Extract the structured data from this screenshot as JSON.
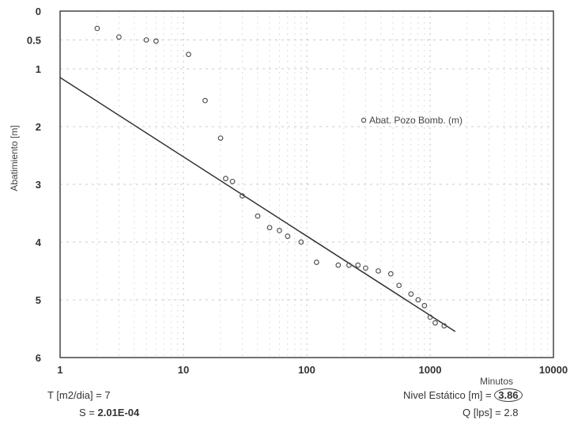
{
  "chart_data": {
    "type": "scatter",
    "xscale": "log",
    "xlim": [
      1,
      10000
    ],
    "ylim": [
      6,
      0
    ],
    "y_inverted": true,
    "xlabel": "Minutos",
    "ylabel": "Abatimiento [m]",
    "x_ticks": [
      "1",
      "10",
      "100",
      "1000",
      "10000"
    ],
    "y_ticks": [
      "0",
      "0.5",
      "1",
      "2",
      "3",
      "4",
      "5",
      "6"
    ],
    "y_tick_values": [
      0,
      0.5,
      1,
      2,
      3,
      4,
      5,
      6
    ],
    "legend": {
      "label": "Abat. Pozo Bomb. (m)",
      "position": "middle-right"
    },
    "grid": true,
    "series": [
      {
        "name": "Abat. Pozo Bomb. (m)",
        "x": [
          2,
          3,
          5,
          6,
          11,
          15,
          20,
          22,
          25,
          30,
          40,
          50,
          60,
          70,
          90,
          120,
          180,
          220,
          260,
          300,
          380,
          480,
          560,
          700,
          800,
          900,
          1000,
          1100,
          1300
        ],
        "y": [
          0.3,
          0.45,
          0.5,
          0.52,
          0.75,
          1.55,
          2.2,
          2.9,
          2.95,
          3.2,
          3.55,
          3.75,
          3.8,
          3.9,
          4.0,
          4.35,
          4.4,
          4.4,
          4.4,
          4.45,
          4.5,
          4.55,
          4.75,
          4.9,
          5.0,
          5.1,
          5.3,
          5.4,
          5.45
        ]
      }
    ],
    "trendline": {
      "x": [
        1,
        1600
      ],
      "y": [
        1.15,
        5.55
      ]
    }
  },
  "info": {
    "t_label": "T [m2/dia] = 7",
    "s_label": "S = ",
    "s_value": "2.01E-04",
    "nivel_label": "Nivel Estático [m] = ",
    "nivel_value": "3.86",
    "q_label": "Q [lps] = 2.8"
  },
  "colors": {
    "markers": "#555555",
    "trendline": "#333333",
    "grid": "#bbbbbb",
    "frame": "#444444"
  }
}
